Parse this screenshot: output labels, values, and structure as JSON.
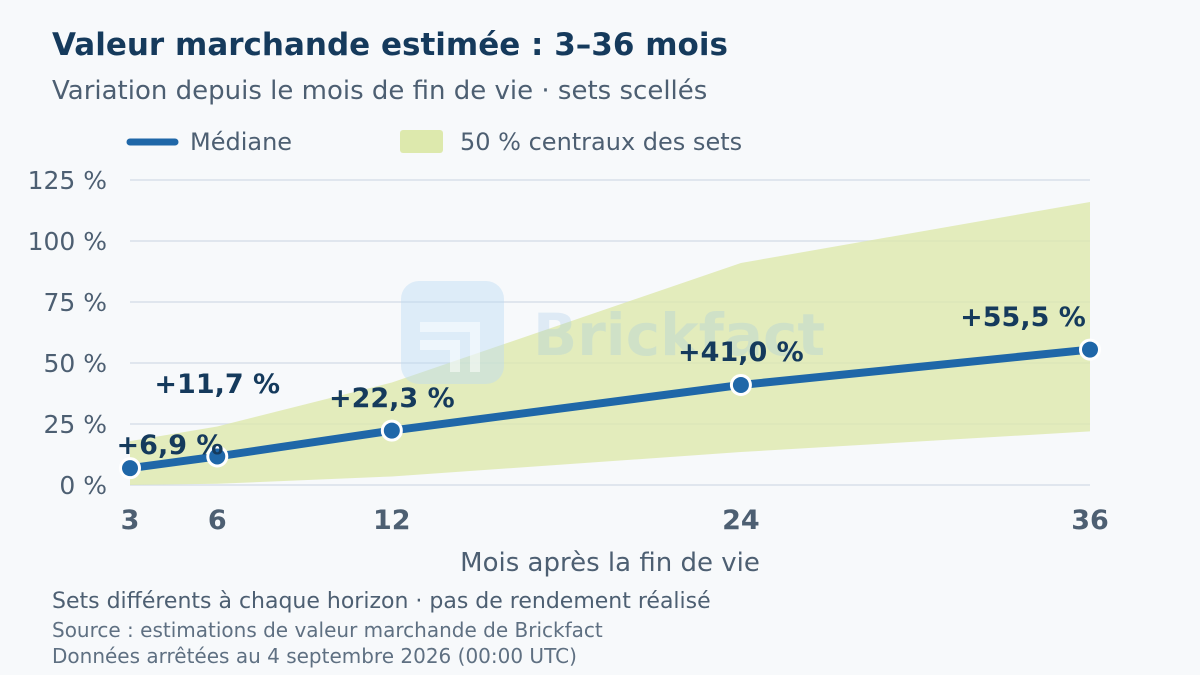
{
  "title": "Valeur marchande estimée : 3–36 mois",
  "subtitle": "Variation depuis le mois de fin de vie · sets scellés",
  "legend": {
    "median_label": "Médiane",
    "band_label": "50 % centraux des sets"
  },
  "watermark": {
    "text": "Brickfact"
  },
  "footer": {
    "note": "Sets différents à chaque horizon · pas de rendement réalisé",
    "source": "Source : estimations de valeur marchande de Brickfact",
    "date": "Données arrêtées au 4 septembre 2026 (00:00 UTC)"
  },
  "colors": {
    "median": "#1f67a8",
    "band": "#dde9ad",
    "grid": "#d8e0ea",
    "text_dark": "#153a5c",
    "text_muted": "#4d5f72"
  },
  "chart_data": {
    "type": "line",
    "xlabel": "Mois après la fin de vie",
    "ylabel": "",
    "x": [
      3,
      6,
      12,
      24,
      36
    ],
    "x_tick_labels": [
      "3",
      "6",
      "12",
      "24",
      "36"
    ],
    "xlim": [
      3,
      36
    ],
    "ylim": [
      0,
      125
    ],
    "y_ticks": [
      0,
      25,
      50,
      75,
      100,
      125
    ],
    "y_tick_labels": [
      "0 %",
      "25 %",
      "50 %",
      "75 %",
      "100 %",
      "125 %"
    ],
    "grid": true,
    "legend_position": "top-left",
    "series": [
      {
        "name": "Médiane",
        "values": [
          6.9,
          11.7,
          22.3,
          41.0,
          55.5
        ],
        "data_labels": [
          "+6,9 %",
          "+11,7 %",
          "+22,3 %",
          "+41,0 %",
          "+55,5 %"
        ]
      }
    ],
    "band": {
      "name": "50 % centraux des sets",
      "lower": [
        0,
        0.5,
        3.5,
        13.5,
        22
      ],
      "upper": [
        18,
        24,
        42,
        91,
        116
      ]
    }
  }
}
